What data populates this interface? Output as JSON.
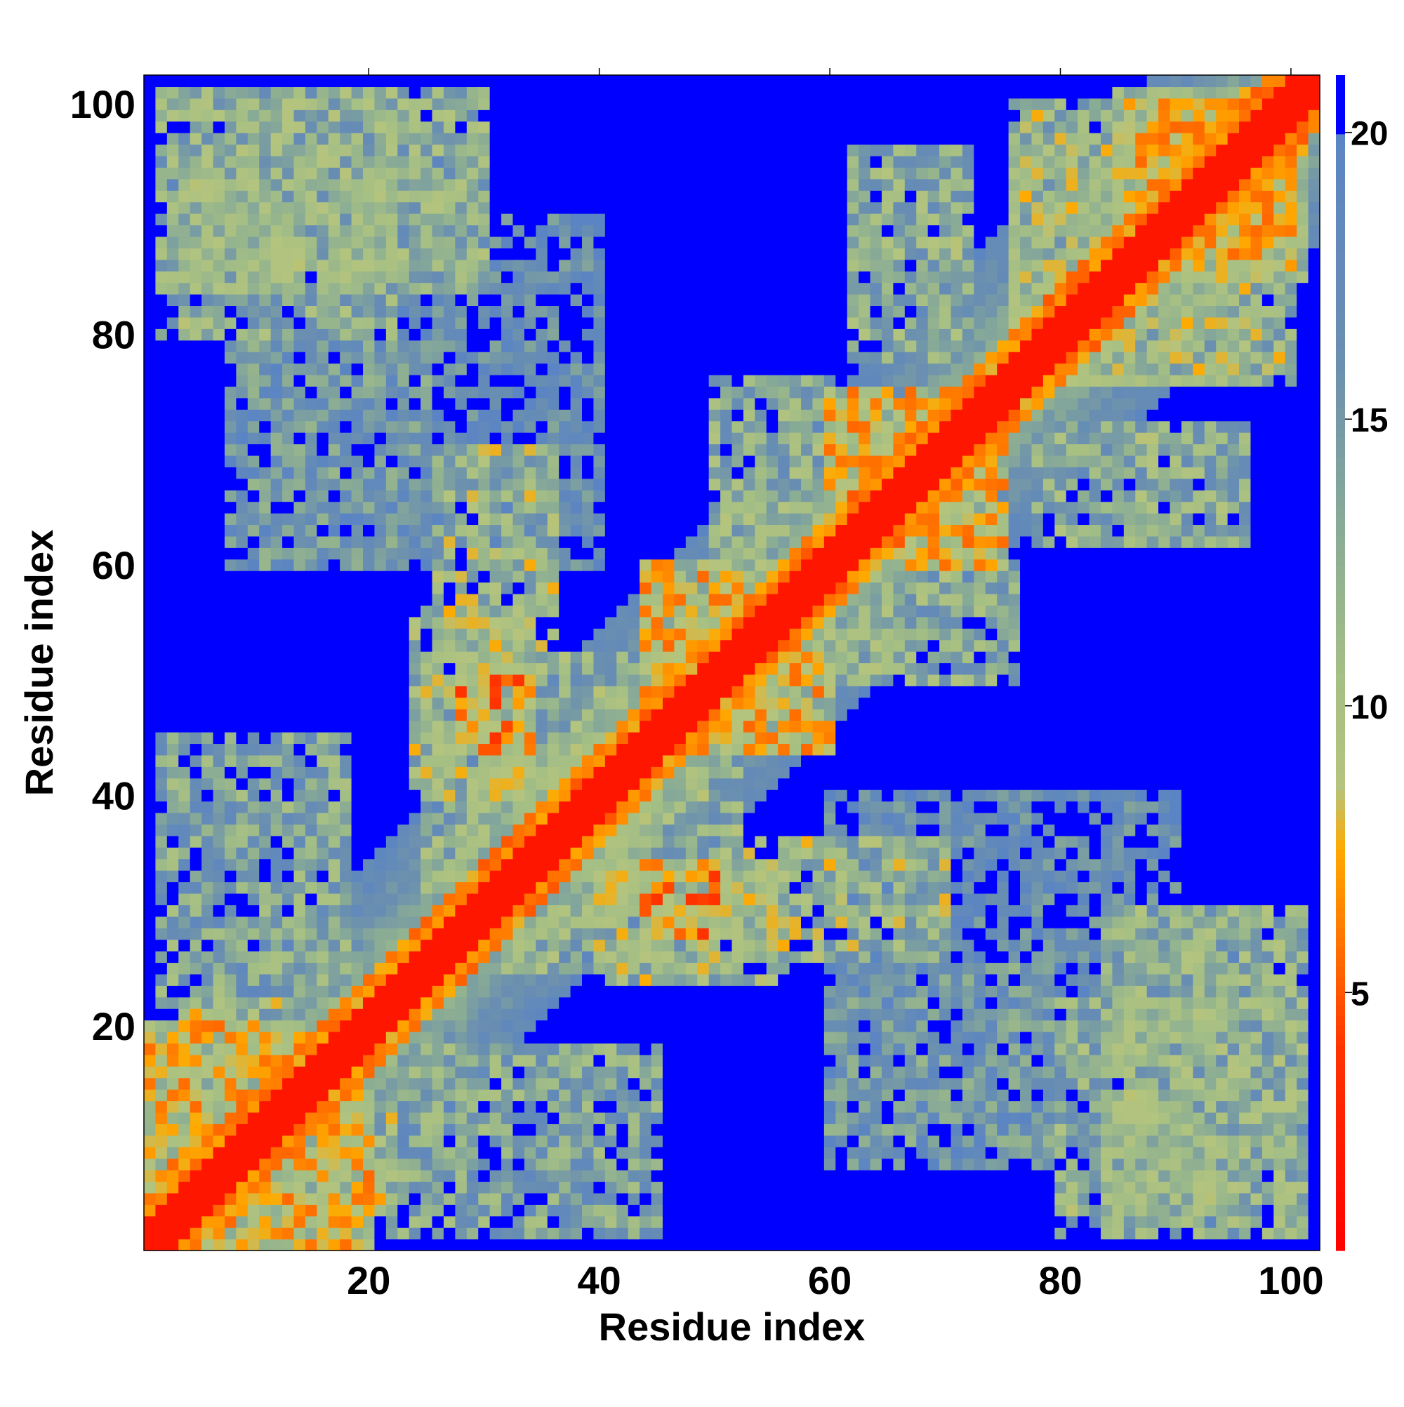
{
  "chart_data": {
    "type": "heatmap",
    "title": "",
    "xlabel": "Residue index",
    "ylabel": "Residue index",
    "n_residues": 102,
    "x_range": [
      0.5,
      102.5
    ],
    "y_range": [
      0.5,
      102.5
    ],
    "x_ticks": [
      20,
      40,
      60,
      80,
      100
    ],
    "y_ticks": [
      20,
      40,
      60,
      80,
      100
    ],
    "x_tick_labels": [
      "20",
      "40",
      "60",
      "80",
      "100"
    ],
    "y_tick_labels": [
      "20",
      "40",
      "60",
      "80",
      "100"
    ],
    "colorbar": {
      "range": [
        0.5,
        21
      ],
      "ticks": [
        5,
        10,
        15,
        20
      ],
      "tick_labels": [
        "5",
        "10",
        "15",
        "20"
      ],
      "stops": [
        {
          "value": 0.5,
          "color": "#ff0000"
        },
        {
          "value": 4.0,
          "color": "#ff3300"
        },
        {
          "value": 6.0,
          "color": "#ff7700"
        },
        {
          "value": 7.5,
          "color": "#ffaa00"
        },
        {
          "value": 8.6,
          "color": "#b4c47e"
        },
        {
          "value": 10.5,
          "color": "#a5bf84"
        },
        {
          "value": 13.0,
          "color": "#8aac95"
        },
        {
          "value": 16.0,
          "color": "#6a8fb0"
        },
        {
          "value": 20.0,
          "color": "#5a84c4"
        },
        {
          "value": 20.01,
          "color": "#0000ff"
        },
        {
          "value": 21.0,
          "color": "#0000ff"
        }
      ]
    },
    "cutoff": 20,
    "above_cutoff_color": "#0000ff",
    "values_note": "symmetric residue-residue distance map; distances above cutoff shown in solid blue",
    "contact_blocks": [
      {
        "i": [
          1,
          102
        ],
        "j_offset": [
          0,
          2
        ],
        "value": 2
      },
      {
        "i": [
          1,
          102
        ],
        "j_offset": [
          3,
          4
        ],
        "value": 6
      },
      {
        "i": [
          1,
          20
        ],
        "j": [
          1,
          20
        ],
        "value": 9
      },
      {
        "i": [
          3,
          12
        ],
        "j": [
          14,
          22
        ],
        "value": 10
      },
      {
        "i": [
          2,
          18
        ],
        "j": [
          22,
          45
        ],
        "value": 13
      },
      {
        "i": [
          2,
          22
        ],
        "j": [
          80,
          101
        ],
        "value": 12
      },
      {
        "i": [
          8,
          25
        ],
        "j": [
          60,
          79
        ],
        "value": 15
      },
      {
        "i": [
          25,
          45
        ],
        "j": [
          32,
          52
        ],
        "value": 12
      },
      {
        "i": [
          26,
          36
        ],
        "j": [
          50,
          70
        ],
        "value": 11
      },
      {
        "i": [
          28,
          34
        ],
        "j": [
          44,
          50
        ],
        "value": 7
      },
      {
        "i": [
          40,
          56
        ],
        "j": [
          24,
          34
        ],
        "value": 11
      },
      {
        "i": [
          44,
          58
        ],
        "j": [
          44,
          60
        ],
        "value": 9
      },
      {
        "i": [
          50,
          60
        ],
        "j": [
          60,
          76
        ],
        "value": 12
      },
      {
        "i": [
          60,
          75
        ],
        "j": [
          60,
          75
        ],
        "value": 9
      },
      {
        "i": [
          62,
          72
        ],
        "j": [
          78,
          96
        ],
        "value": 12
      },
      {
        "i": [
          76,
          96
        ],
        "j": [
          76,
          100
        ],
        "value": 11
      },
      {
        "i": [
          84,
          101
        ],
        "j": [
          5,
          30
        ],
        "value": 12
      },
      {
        "i": [
          85,
          101
        ],
        "j": [
          88,
          101
        ],
        "value": 9
      },
      {
        "i": [
          3,
          30
        ],
        "j": [
          84,
          95
        ],
        "value": 14
      },
      {
        "i": [
          60,
          90
        ],
        "j": [
          20,
          40
        ],
        "value": 17
      }
    ]
  }
}
